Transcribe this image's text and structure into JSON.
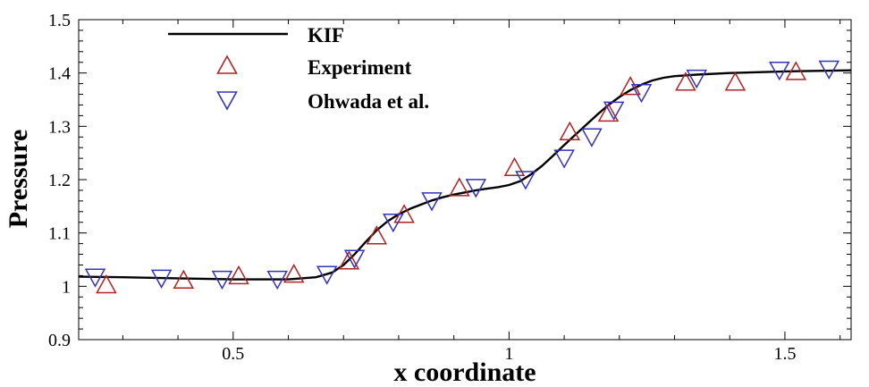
{
  "chart_data": {
    "type": "line",
    "title": "",
    "xlabel": "x coordinate",
    "ylabel": "Pressure",
    "xlim": [
      0.22,
      1.62
    ],
    "ylim": [
      0.9,
      1.5
    ],
    "xticks": [
      0.5,
      1,
      1.5
    ],
    "xtick_labels": [
      "0.5",
      "1",
      "1.5"
    ],
    "yticks": [
      0.9,
      1,
      1.1,
      1.2,
      1.3,
      1.4,
      1.5
    ],
    "ytick_labels": [
      "0.9",
      "1",
      "1.1",
      "1.2",
      "1.3",
      "1.4",
      "1.5"
    ],
    "legend_position": "top-left",
    "series": [
      {
        "name": "KIF",
        "kind": "line",
        "color": "#000000",
        "x": [
          0.22,
          0.3,
          0.4,
          0.5,
          0.6,
          0.65,
          0.68,
          0.7,
          0.72,
          0.74,
          0.76,
          0.78,
          0.8,
          0.82,
          0.84,
          0.86,
          0.88,
          0.9,
          0.92,
          0.94,
          0.96,
          0.98,
          1.0,
          1.02,
          1.04,
          1.06,
          1.08,
          1.1,
          1.12,
          1.14,
          1.16,
          1.18,
          1.2,
          1.22,
          1.24,
          1.26,
          1.28,
          1.3,
          1.34,
          1.4,
          1.5,
          1.62
        ],
        "y": [
          1.018,
          1.017,
          1.015,
          1.013,
          1.013,
          1.017,
          1.026,
          1.04,
          1.06,
          1.083,
          1.105,
          1.122,
          1.135,
          1.145,
          1.153,
          1.161,
          1.167,
          1.172,
          1.176,
          1.18,
          1.183,
          1.186,
          1.19,
          1.197,
          1.21,
          1.226,
          1.245,
          1.265,
          1.284,
          1.303,
          1.322,
          1.34,
          1.355,
          1.368,
          1.378,
          1.386,
          1.391,
          1.394,
          1.397,
          1.4,
          1.403,
          1.405
        ]
      },
      {
        "name": "Experiment",
        "kind": "marker",
        "marker": "triangle-up",
        "color": "#b22222",
        "x": [
          0.27,
          0.41,
          0.51,
          0.61,
          0.71,
          0.76,
          0.81,
          0.91,
          1.01,
          1.11,
          1.18,
          1.22,
          1.32,
          1.41,
          1.52
        ],
        "y": [
          1.003,
          1.012,
          1.02,
          1.023,
          1.048,
          1.095,
          1.135,
          1.185,
          1.223,
          1.29,
          1.325,
          1.375,
          1.383,
          1.383,
          1.403
        ]
      },
      {
        "name": "Ohwada et al.",
        "kind": "marker",
        "marker": "triangle-down",
        "color": "#3333bb",
        "x": [
          0.25,
          0.37,
          0.48,
          0.58,
          0.67,
          0.72,
          0.79,
          0.86,
          0.94,
          1.03,
          1.1,
          1.15,
          1.19,
          1.24,
          1.34,
          1.49,
          1.58
        ],
        "y": [
          1.017,
          1.015,
          1.013,
          1.013,
          1.022,
          1.052,
          1.12,
          1.16,
          1.185,
          1.2,
          1.24,
          1.28,
          1.33,
          1.363,
          1.39,
          1.405,
          1.407
        ]
      }
    ]
  }
}
